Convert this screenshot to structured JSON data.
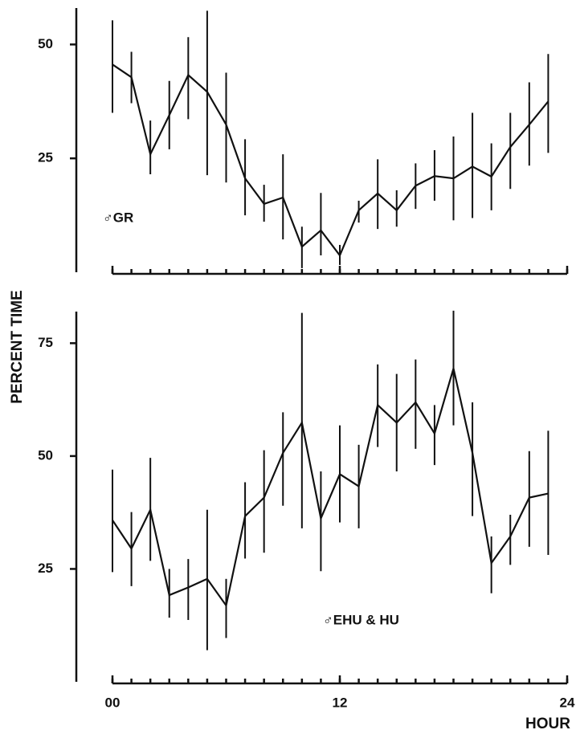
{
  "chart_data": [
    {
      "type": "line",
      "ylabel": "PERCENT TIME",
      "annotation": "♂GR",
      "x": [
        0,
        1,
        2,
        3,
        4,
        5,
        6,
        7,
        8,
        9,
        10,
        11,
        12,
        13,
        14,
        15,
        16,
        17,
        18,
        19,
        20,
        21,
        22,
        23
      ],
      "values": [
        45.6,
        42.8,
        25.9,
        34.5,
        43.3,
        39.6,
        32.4,
        20.6,
        15,
        16.4,
        5.6,
        9.2,
        3.7,
        13.6,
        17.3,
        13.6,
        19,
        21.1,
        20.6,
        23.2,
        21,
        27.5,
        32.4,
        37.5
      ],
      "error_low": [
        35,
        37.1,
        21.5,
        27,
        33.6,
        21.3,
        19.7,
        12.5,
        11.1,
        7.2,
        0.9,
        3.7,
        1.6,
        10.9,
        9.5,
        10,
        13.9,
        15.7,
        11.4,
        11.9,
        13.6,
        18.3,
        23.4,
        26.2
      ],
      "error_high": [
        55.3,
        48.4,
        33.3,
        42,
        51.6,
        57.4,
        43.8,
        29.2,
        19.2,
        25.9,
        10,
        17.4,
        6,
        15.7,
        24.8,
        18,
        23.9,
        26.8,
        29.8,
        35,
        28.3,
        35,
        41.7,
        47.9
      ],
      "color": "#111111",
      "xlim": [
        0,
        24
      ],
      "xticks": [
        0,
        12,
        24
      ],
      "ylim": [
        0,
        58
      ],
      "yticks": [
        25,
        50
      ]
    },
    {
      "type": "line",
      "xlabel": "HOUR",
      "annotation": "♂EHU & HU",
      "x": [
        0,
        1,
        2,
        3,
        4,
        5,
        6,
        7,
        8,
        9,
        10,
        11,
        12,
        13,
        14,
        15,
        16,
        17,
        18,
        19,
        20,
        21,
        22,
        23
      ],
      "values": [
        35.8,
        29.5,
        38.1,
        19.2,
        20.9,
        22.8,
        16.9,
        36.7,
        40.8,
        50.7,
        57.4,
        36.2,
        46,
        43.3,
        61.3,
        57.4,
        61.9,
        55,
        69.4,
        50.7,
        26.3,
        32.2,
        40.8,
        41.7
      ],
      "error_low": [
        24.3,
        21.2,
        26.8,
        14.2,
        13.7,
        7,
        9.7,
        27.3,
        28.6,
        39,
        34,
        24.5,
        35.3,
        34,
        52,
        46.6,
        51.6,
        48,
        56.8,
        36.7,
        19.6,
        25.9,
        29.9,
        28.1
      ],
      "error_high": [
        47,
        37.6,
        49.6,
        25,
        27.2,
        38.1,
        22.8,
        44.2,
        51.3,
        59.7,
        81.7,
        46.6,
        56.8,
        52.5,
        70.3,
        68.2,
        71.4,
        61.3,
        82.2,
        61.9,
        32.2,
        37,
        51.1,
        55.6
      ],
      "color": "#111111",
      "xlim": [
        0,
        24
      ],
      "xticks": [
        {
          "value": 0,
          "label": "00"
        },
        {
          "value": 12,
          "label": "12"
        },
        {
          "value": 24,
          "label": "24"
        }
      ],
      "ylim": [
        0,
        82
      ],
      "yticks": [
        25,
        50,
        75
      ]
    }
  ]
}
